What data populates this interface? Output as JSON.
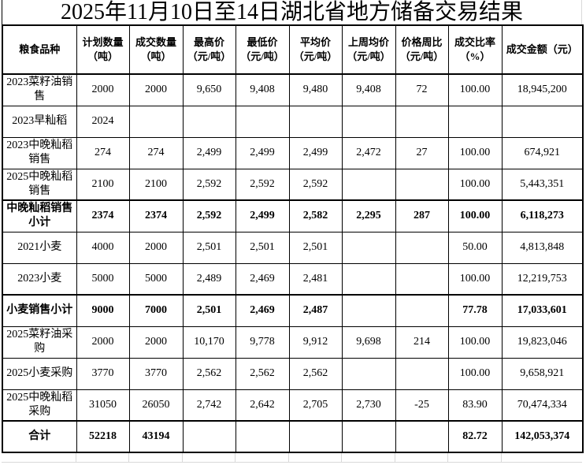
{
  "chart_data": {
    "type": "table",
    "title": "2025年11月10日至14日湖北省地方储备交易结果",
    "columns": [
      "粮食品种",
      "计划数量\n（吨）",
      "成交数量\n（吨）",
      "最高价\n（元/吨）",
      "最低价\n（元/吨）",
      "平均价\n（元/吨）",
      "上周均价\n（元/吨）",
      "价格周比\n（元/吨）",
      "成交比率\n（%）",
      "成交金额（元）"
    ],
    "rows": [
      [
        "2023菜籽油销售",
        "2000",
        "2000",
        "9,650",
        "9,408",
        "9,480",
        "9,408",
        "72",
        "100.00",
        "18,945,200"
      ],
      [
        "2023早籼稻",
        "2024",
        "",
        "",
        "",
        "",
        "",
        "",
        "",
        ""
      ],
      [
        "2023中晚籼稻销售",
        "274",
        "274",
        "2,499",
        "2,499",
        "2,499",
        "2,472",
        "27",
        "100.00",
        "674,921"
      ],
      [
        "2025中晚籼稻销售",
        "2100",
        "2100",
        "2,592",
        "2,592",
        "2,592",
        "",
        "",
        "100.00",
        "5,443,351"
      ],
      [
        "中晚籼稻销售小计",
        "2374",
        "2374",
        "2,592",
        "2,499",
        "2,582",
        "2,295",
        "287",
        "100.00",
        "6,118,273"
      ],
      [
        "2021小麦",
        "4000",
        "2000",
        "2,501",
        "2,501",
        "2,501",
        "",
        "",
        "50.00",
        "4,813,848"
      ],
      [
        "2023小麦",
        "5000",
        "5000",
        "2,489",
        "2,469",
        "2,481",
        "",
        "",
        "100.00",
        "12,219,753"
      ],
      [
        "小麦销售小计",
        "9000",
        "7000",
        "2,501",
        "2,469",
        "2,487",
        "",
        "",
        "77.78",
        "17,033,601"
      ],
      [
        "2025菜籽油采购",
        "2000",
        "2000",
        "10,170",
        "9,778",
        "9,912",
        "9,698",
        "214",
        "100.00",
        "19,823,046"
      ],
      [
        "2025小麦采购",
        "3770",
        "3770",
        "2,562",
        "2,562",
        "2,562",
        "",
        "",
        "100.00",
        "9,658,921"
      ],
      [
        "2025中晚籼稻采购",
        "31050",
        "26050",
        "2,742",
        "2,642",
        "2,705",
        "2,730",
        "-25",
        "83.90",
        "70,474,334"
      ],
      [
        "合计",
        "52218",
        "43194",
        "",
        "",
        "",
        "",
        "",
        "82.72",
        "142,053,374"
      ]
    ],
    "bold_rows": [
      4,
      7,
      11
    ],
    "grid_on": true,
    "text_color": "#000000",
    "background_color": "#ffffff",
    "border_color": "#000000"
  }
}
